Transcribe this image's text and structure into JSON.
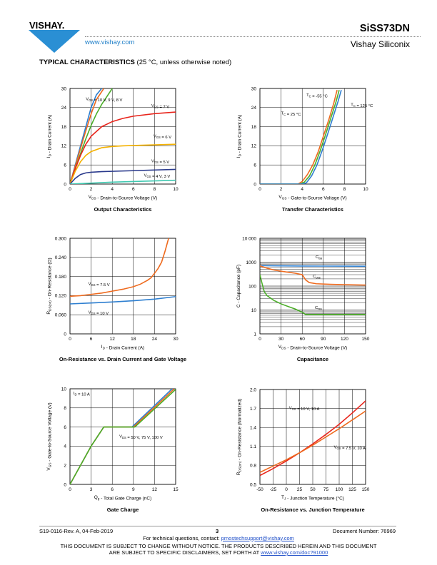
{
  "header": {
    "logo_text": "VISHAY.",
    "website": "www.vishay.com",
    "part_number": "SiSS73DN",
    "company": "Vishay Siliconix"
  },
  "section": {
    "title_bold": "TYPICAL CHARACTERISTICS",
    "title_rest": " (25 °C, unless otherwise noted)"
  },
  "footer": {
    "doc_rev": "S19-0116-Rev. A, 04-Feb-2019",
    "page": "3",
    "doc_number": "Document Number: 76969",
    "contact_prefix": "For technical questions, contact: ",
    "contact_email": "pmostechsupport@vishay.com",
    "disclaimer_line1": "THIS DOCUMENT IS SUBJECT TO CHANGE WITHOUT NOTICE. THE PRODUCTS DESCRIBED HEREIN AND THIS DOCUMENT",
    "disclaimer_line2_prefix": "ARE SUBJECT TO SPECIFIC DISCLAIMERS, SET FORTH AT ",
    "disclaimer_link": "www.vishay.com/doc?91000"
  },
  "colors": {
    "blue": "#2e7fd0",
    "green": "#4caf2a",
    "orange": "#ee6a1e",
    "red": "#e8241b",
    "yellow": "#f5b200",
    "navy": "#2a3a8c",
    "teal": "#3fc8b0",
    "link": "#1f7fc8"
  },
  "chart_data": [
    {
      "id": "output",
      "type": "line",
      "title": "Output Characteristics",
      "xlabel": "V_DS - Drain-to-Source Voltage (V)",
      "ylabel": "I_D - Drain Current (A)",
      "xlim": [
        0,
        10
      ],
      "ylim": [
        0,
        30
      ],
      "xticks": [
        0,
        2,
        4,
        6,
        8,
        10
      ],
      "yticks": [
        0,
        6,
        12,
        18,
        24,
        30
      ],
      "grid": true,
      "series": [
        {
          "name": "V_GS = 10 V, 9 V, 8 V",
          "color": "blue",
          "x": [
            0,
            0.5,
            1,
            1.5,
            2,
            2.5,
            3
          ],
          "y": [
            0,
            6,
            12,
            18,
            24,
            28,
            31
          ]
        },
        {
          "name": "",
          "color": "orange",
          "x": [
            0,
            0.5,
            1,
            1.5,
            2,
            2.5,
            3.2
          ],
          "y": [
            0,
            5.6,
            11.2,
            16.7,
            22,
            26.5,
            30.5
          ]
        },
        {
          "name": "",
          "color": "green",
          "x": [
            0,
            0.5,
            1,
            1.5,
            2,
            2.5,
            3,
            3.5,
            4
          ],
          "y": [
            0,
            4.8,
            9.6,
            14.2,
            18.4,
            22,
            25,
            27.5,
            30
          ]
        },
        {
          "name": "V_GS = 7 V",
          "color": "red",
          "x": [
            0,
            0.5,
            1,
            1.5,
            2,
            3,
            4,
            5,
            6,
            8,
            10
          ],
          "y": [
            0,
            4.8,
            9,
            12.5,
            15,
            18,
            19.6,
            20.6,
            21.3,
            22.1,
            22.6
          ]
        },
        {
          "name": "V_GS = 6 V",
          "color": "yellow",
          "x": [
            0,
            0.5,
            1,
            1.5,
            2,
            3,
            4,
            5,
            6,
            8,
            10
          ],
          "y": [
            0,
            4,
            7,
            9,
            10.2,
            11.4,
            11.8,
            12,
            12.1,
            12.3,
            12.5
          ]
        },
        {
          "name": "V_GS = 5 V",
          "color": "navy",
          "x": [
            0,
            0.5,
            1,
            1.5,
            2,
            3,
            4,
            6,
            8,
            10
          ],
          "y": [
            0,
            1.8,
            3,
            3.5,
            3.7,
            3.9,
            4,
            4.2,
            4.4,
            4.6
          ]
        },
        {
          "name": "V_GS = 4 V, 3 V",
          "color": "teal",
          "x": [
            0,
            2,
            4,
            6,
            8,
            10
          ],
          "y": [
            0,
            0.3,
            0.6,
            0.8,
            1,
            1.2
          ]
        }
      ],
      "annotations": [
        {
          "text": "V_GS = 10 V, 9 V, 8 V",
          "x": 1.5,
          "y": 26.3
        },
        {
          "text": "V_GS = 7 V",
          "x": 7.7,
          "y": 24.2
        },
        {
          "text": "V_GS = 6 V",
          "x": 7.9,
          "y": 14.7
        },
        {
          "text": "V_GS = 5 V",
          "x": 7.7,
          "y": 6.8
        },
        {
          "text": "V_GS = 4 V, 3 V",
          "x": 7.0,
          "y": 2.4
        }
      ]
    },
    {
      "id": "transfer",
      "type": "line",
      "title": "Transfer Characteristics",
      "xlabel": "V_GS - Gate-to-Source Voltage (V)",
      "ylabel": "I_D - Drain Current (A)",
      "xlim": [
        0,
        10
      ],
      "ylim": [
        0,
        30
      ],
      "xticks": [
        0,
        2,
        4,
        6,
        8,
        10
      ],
      "yticks": [
        0,
        6,
        12,
        18,
        24,
        30
      ],
      "grid": true,
      "series": [
        {
          "name": "T_C = 125 °C",
          "color": "orange",
          "x": [
            0,
            3.6,
            4,
            4.5,
            5,
            5.5,
            6,
            6.5,
            7,
            7.3
          ],
          "y": [
            0,
            0,
            0.8,
            3,
            6,
            10,
            15,
            20,
            25.5,
            29.5
          ]
        },
        {
          "name": "T_C = 25 °C",
          "color": "green",
          "x": [
            0,
            3.8,
            4.2,
            4.7,
            5.2,
            5.7,
            6.2,
            6.7,
            7.2,
            7.5
          ],
          "y": [
            0,
            0,
            0.6,
            2.6,
            6,
            10.4,
            15.4,
            20.6,
            25.8,
            29.5
          ]
        },
        {
          "name": "T_C = -55 °C",
          "color": "blue",
          "x": [
            0,
            4,
            4.4,
            4.9,
            5.4,
            5.9,
            6.4,
            6.9,
            7.4,
            7.7
          ],
          "y": [
            0,
            0,
            0.4,
            2.6,
            6,
            10.6,
            15.6,
            20.8,
            26,
            29.5
          ]
        }
      ],
      "annotations": [
        {
          "text": "T_C = -55 °C",
          "x": 4.4,
          "y": 27.5
        },
        {
          "text": "T_C = 125 °C",
          "x": 8.6,
          "y": 24.5
        },
        {
          "text": "T_C = 25 °C",
          "x": 2.0,
          "y": 21.8
        }
      ]
    },
    {
      "id": "rds",
      "type": "line",
      "title": "On-Resistance vs. Drain Current and Gate Voltage",
      "xlabel": "I_D - Drain Current (A)",
      "ylabel": "R_DS(on) - On-Resistance (Ω)",
      "xlim": [
        0,
        30
      ],
      "ylim": [
        0,
        0.3
      ],
      "xticks": [
        0,
        6,
        12,
        18,
        24,
        30
      ],
      "yticks": [
        0,
        0.06,
        0.12,
        0.18,
        0.24,
        0.3
      ],
      "yticklabels": [
        "0",
        "0.060",
        "0.120",
        "0.180",
        "0.240",
        "0.300"
      ],
      "grid": true,
      "series": [
        {
          "name": "V_GS = 7.5 V",
          "color": "orange",
          "x": [
            0,
            3,
            6,
            9,
            12,
            15,
            18,
            20,
            22,
            23,
            24,
            25,
            26,
            27,
            28
          ],
          "y": [
            0.118,
            0.12,
            0.124,
            0.128,
            0.134,
            0.14,
            0.148,
            0.156,
            0.168,
            0.176,
            0.19,
            0.205,
            0.225,
            0.26,
            0.3
          ]
        },
        {
          "name": "V_GS = 10 V",
          "color": "blue",
          "x": [
            0,
            6,
            12,
            18,
            24,
            30
          ],
          "y": [
            0.094,
            0.097,
            0.1,
            0.104,
            0.109,
            0.117
          ]
        }
      ],
      "annotations": [
        {
          "text": "V_GS = 7.5 V",
          "x": 5.2,
          "y": 0.153
        },
        {
          "text": "V_GS = 10 V",
          "x": 5.2,
          "y": 0.064
        }
      ]
    },
    {
      "id": "cap",
      "type": "line",
      "title": "Capacitance",
      "xlabel": "V_DS - Drain-to-Source Voltage (V)",
      "ylabel": "C - Capacitance (pF)",
      "xlim": [
        0,
        150
      ],
      "ylim": [
        1,
        10000
      ],
      "yscale": "log",
      "xticks": [
        0,
        30,
        60,
        90,
        120,
        150
      ],
      "yticks": [
        1,
        10,
        100,
        1000,
        10000
      ],
      "yticklabels": [
        "1",
        "10",
        "100",
        "1000",
        "10 000"
      ],
      "grid": true,
      "series": [
        {
          "name": "C_iss",
          "color": "blue",
          "x": [
            0,
            30,
            60,
            90,
            120,
            150
          ],
          "y": [
            720,
            700,
            690,
            685,
            680,
            678
          ]
        },
        {
          "name": "C_oss",
          "color": "orange",
          "x": [
            0,
            10,
            20,
            30,
            40,
            50,
            60,
            65,
            70,
            80,
            100,
            120,
            150
          ],
          "y": [
            700,
            560,
            470,
            420,
            380,
            345,
            300,
            180,
            140,
            125,
            118,
            114,
            110
          ]
        },
        {
          "name": "C_rss",
          "color": "green",
          "x": [
            0,
            3,
            6,
            10,
            20,
            30,
            40,
            50,
            60,
            65,
            70,
            90,
            120,
            150
          ],
          "y": [
            300,
            130,
            60,
            40,
            25,
            18,
            14,
            11,
            8,
            6.5,
            6.5,
            6.5,
            6.5,
            6.5
          ]
        }
      ],
      "annotations": [
        {
          "text": "C_iss",
          "x": 79,
          "y": 1450
        },
        {
          "text": "C_oss",
          "x": 75,
          "y": 230
        },
        {
          "text": "C_rss",
          "x": 78,
          "y": 11
        }
      ]
    },
    {
      "id": "gate",
      "type": "line",
      "title": "Gate Charge",
      "xlabel": "Q_g - Total Gate Charge (nC)",
      "ylabel": "V_GS - Gate-to-Source Voltage (V)",
      "xlim": [
        0,
        15
      ],
      "ylim": [
        0,
        10
      ],
      "xticks": [
        0,
        3,
        6,
        9,
        12,
        15
      ],
      "yticks": [
        0,
        2,
        4,
        6,
        8,
        10
      ],
      "grid": true,
      "series": [
        {
          "name": "V_DS = 50 V",
          "color": "blue",
          "x": [
            0,
            3,
            4.8,
            8.8,
            14.5
          ],
          "y": [
            0,
            4,
            6,
            6,
            10
          ]
        },
        {
          "name": "V_DS = 75 V",
          "color": "orange",
          "x": [
            0,
            3,
            4.8,
            9.0,
            14.8
          ],
          "y": [
            0,
            4,
            6,
            6,
            10
          ]
        },
        {
          "name": "V_DS = 100 V",
          "color": "green",
          "x": [
            0,
            3,
            4.8,
            9.2,
            15.1
          ],
          "y": [
            0,
            4,
            6,
            6,
            10
          ]
        }
      ],
      "annotations": [
        {
          "text": "I_D = 10 A",
          "x": 0.5,
          "y": 9.4
        },
        {
          "text": "V_DS = 50 V, 75 V, 100 V",
          "x": 7.0,
          "y": 4.9
        }
      ]
    },
    {
      "id": "rdstemp",
      "type": "line",
      "title": "On-Resistance vs. Junction Temperature",
      "xlabel": "T_J - Junction Temperature (°C)",
      "ylabel": "R_DS(on) - On-Resistance (Normalized)",
      "xlim": [
        -50,
        150
      ],
      "ylim": [
        0.5,
        2.0
      ],
      "xticks": [
        -50,
        -25,
        0,
        25,
        50,
        75,
        100,
        125,
        150
      ],
      "yticks": [
        0.5,
        0.8,
        1.1,
        1.4,
        1.7,
        2.0
      ],
      "yticklabels": [
        "0.5",
        "0.8",
        "1.1",
        "1.4",
        "1.7",
        "2.0"
      ],
      "grid": true,
      "series": [
        {
          "name": "V_GS = 10 V, 10 A",
          "color": "red",
          "x": [
            -50,
            -25,
            0,
            25,
            50,
            75,
            100,
            125,
            150
          ],
          "y": [
            0.64,
            0.75,
            0.87,
            1.0,
            1.14,
            1.29,
            1.45,
            1.63,
            1.82
          ]
        },
        {
          "name": "V_GS = 7.5 V, 10 A",
          "color": "orange",
          "x": [
            -50,
            -25,
            0,
            25,
            50,
            75,
            100,
            125,
            150
          ],
          "y": [
            0.69,
            0.79,
            0.89,
            1.0,
            1.12,
            1.25,
            1.38,
            1.52,
            1.66
          ]
        }
      ],
      "annotations": [
        {
          "text": "V_GS = 10 V, 10 A",
          "x": 5,
          "y": 1.69
        },
        {
          "text": "V_GS = 7.5 V, 10 A",
          "x": 90,
          "y": 1.07
        }
      ]
    }
  ]
}
